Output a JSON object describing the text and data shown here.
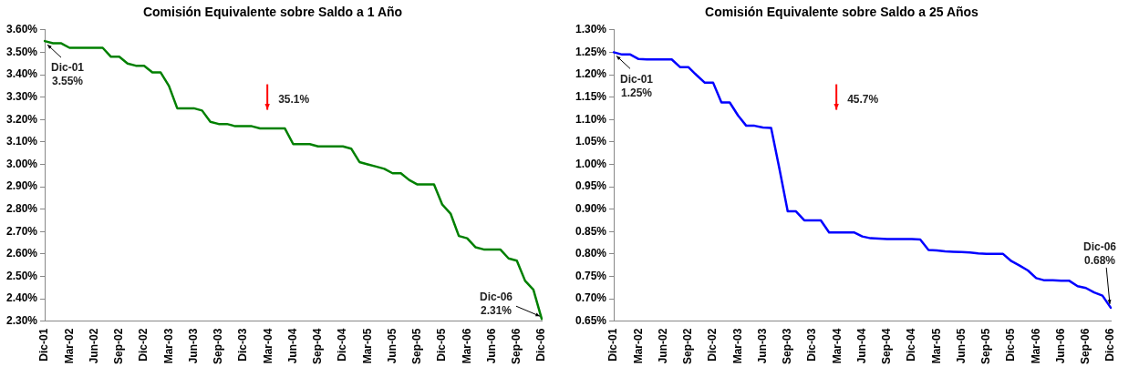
{
  "chart_data": [
    {
      "type": "line",
      "title": "Comisión Equivalente sobre Saldo a 1 Año",
      "categories": [
        "Dic-01",
        null,
        null,
        "Mar-02",
        null,
        null,
        "Jun-02",
        null,
        null,
        "Sep-02",
        null,
        null,
        "Dic-02",
        null,
        null,
        "Mar-03",
        null,
        null,
        "Jun-03",
        null,
        null,
        "Sep-03",
        null,
        null,
        "Dic-03",
        null,
        null,
        "Mar-04",
        null,
        null,
        "Jun-04",
        null,
        null,
        "Sep-04",
        null,
        null,
        "Dic-04",
        null,
        null,
        "Mar-05",
        null,
        null,
        "Jun-05",
        null,
        null,
        "Sep-05",
        null,
        null,
        "Dic-05",
        null,
        null,
        "Mar-06",
        null,
        null,
        "Jun-06",
        null,
        null,
        "Sep-06",
        null,
        null,
        "Dic-06"
      ],
      "series": [
        {
          "color": "#008000",
          "values": [
            3.55,
            3.54,
            3.54,
            3.52,
            3.52,
            3.52,
            3.52,
            3.52,
            3.48,
            3.48,
            3.45,
            3.44,
            3.44,
            3.41,
            3.41,
            3.35,
            3.25,
            3.25,
            3.25,
            3.24,
            3.19,
            3.18,
            3.18,
            3.17,
            3.17,
            3.17,
            3.16,
            3.16,
            3.16,
            3.16,
            3.09,
            3.09,
            3.09,
            3.08,
            3.08,
            3.08,
            3.08,
            3.07,
            3.01,
            3.0,
            2.99,
            2.98,
            2.96,
            2.96,
            2.93,
            2.91,
            2.91,
            2.91,
            2.82,
            2.78,
            2.68,
            2.67,
            2.63,
            2.62,
            2.62,
            2.62,
            2.58,
            2.57,
            2.48,
            2.44,
            2.31
          ]
        }
      ],
      "ylim": [
        2.3,
        3.6
      ],
      "yticks": [
        {
          "value": 2.3,
          "label": "2.30%"
        },
        {
          "value": 2.4,
          "label": "2.40%"
        },
        {
          "value": 2.5,
          "label": "2.50%"
        },
        {
          "value": 2.6,
          "label": "2.60%"
        },
        {
          "value": 2.7,
          "label": "2.70%"
        },
        {
          "value": 2.8,
          "label": "2.80%"
        },
        {
          "value": 2.9,
          "label": "2.90%"
        },
        {
          "value": 3.0,
          "label": "3.00%"
        },
        {
          "value": 3.1,
          "label": "3.10%"
        },
        {
          "value": 3.2,
          "label": "3.20%"
        },
        {
          "value": 3.3,
          "label": "3.30%"
        },
        {
          "value": 3.4,
          "label": "3.40%"
        },
        {
          "value": 3.5,
          "label": "3.50%"
        },
        {
          "value": 3.6,
          "label": "3.60%"
        }
      ],
      "annotations": [
        {
          "text": "Dic-01\n3.55%",
          "x": "Dic-01",
          "y": 3.55
        },
        "35.1%",
        {
          "text": "Dic-06\n2.31%",
          "x": "Dic-06",
          "y": 2.31
        }
      ],
      "grid": false,
      "legend": false,
      "marker": "none",
      "line_style": "solid"
    },
    {
      "type": "line",
      "title": "Comisión Equivalente sobre Saldo a 25 Años",
      "categories": [
        "Dic-01",
        null,
        null,
        "Mar-02",
        null,
        null,
        "Jun-02",
        null,
        null,
        "Sep-02",
        null,
        null,
        "Dic-02",
        null,
        null,
        "Mar-03",
        null,
        null,
        "Jun-03",
        null,
        null,
        "Sep-03",
        null,
        null,
        "Dic-03",
        null,
        null,
        "Mar-04",
        null,
        null,
        "Jun-04",
        null,
        null,
        "Sep-04",
        null,
        null,
        "Dic-04",
        null,
        null,
        "Mar-05",
        null,
        null,
        "Jun-05",
        null,
        null,
        "Sep-05",
        null,
        null,
        "Dic-05",
        null,
        null,
        "Mar-06",
        null,
        null,
        "Jun-06",
        null,
        null,
        "Sep-06",
        null,
        null,
        "Dic-06"
      ],
      "series": [
        {
          "color": "#0000ff",
          "values": [
            1.25,
            1.245,
            1.245,
            1.235,
            1.234,
            1.234,
            1.234,
            1.234,
            1.217,
            1.217,
            1.199,
            1.182,
            1.182,
            1.138,
            1.138,
            1.109,
            1.086,
            1.086,
            1.082,
            1.081,
            0.99,
            0.895,
            0.895,
            0.875,
            0.875,
            0.875,
            0.848,
            0.848,
            0.848,
            0.848,
            0.839,
            0.835,
            0.834,
            0.833,
            0.833,
            0.833,
            0.833,
            0.832,
            0.809,
            0.808,
            0.806,
            0.805,
            0.804,
            0.803,
            0.801,
            0.8,
            0.8,
            0.8,
            0.784,
            0.774,
            0.763,
            0.746,
            0.741,
            0.741,
            0.74,
            0.74,
            0.728,
            0.724,
            0.714,
            0.707,
            0.68
          ]
        }
      ],
      "ylim": [
        0.65,
        1.3
      ],
      "yticks": [
        {
          "value": 0.65,
          "label": "0.65%"
        },
        {
          "value": 0.7,
          "label": "0.70%"
        },
        {
          "value": 0.75,
          "label": "0.75%"
        },
        {
          "value": 0.8,
          "label": "0.80%"
        },
        {
          "value": 0.85,
          "label": "0.85%"
        },
        {
          "value": 0.9,
          "label": "0.90%"
        },
        {
          "value": 0.95,
          "label": "0.95%"
        },
        {
          "value": 1.0,
          "label": "1.00%"
        },
        {
          "value": 1.05,
          "label": "1.05%"
        },
        {
          "value": 1.1,
          "label": "1.10%"
        },
        {
          "value": 1.15,
          "label": "1.15%"
        },
        {
          "value": 1.2,
          "label": "1.20%"
        },
        {
          "value": 1.25,
          "label": "1.25%"
        },
        {
          "value": 1.3,
          "label": "1.30%"
        }
      ],
      "annotations": [
        {
          "text": "Dic-01\n1.25%",
          "x": "Dic-01",
          "y": 1.25
        },
        "45.7%",
        {
          "text": "Dic-06\n0.68%",
          "x": "Dic-06",
          "y": 0.68
        }
      ],
      "grid": false,
      "legend": false,
      "marker": "none",
      "line_style": "solid"
    }
  ]
}
